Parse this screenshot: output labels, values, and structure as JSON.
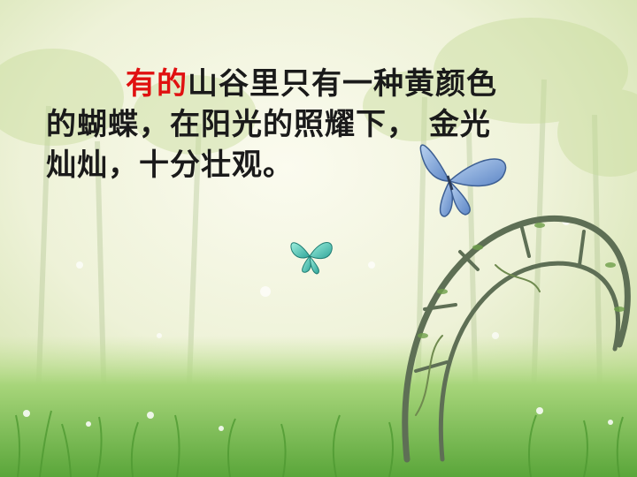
{
  "slide": {
    "highlight": "有的",
    "line1_rest": "山谷里只有一种黄颜色",
    "line2": "的蝴蝶，在阳光的照耀下， 金光",
    "line3": "灿灿，十分壮观。"
  },
  "colors": {
    "highlight": "#e01010",
    "text": "#1a1a1a",
    "background_light": "#f4f6e6",
    "grass": "#6fb84a"
  },
  "icons": [
    "butterfly-icon",
    "butterfly-icon",
    "arch-icon"
  ]
}
